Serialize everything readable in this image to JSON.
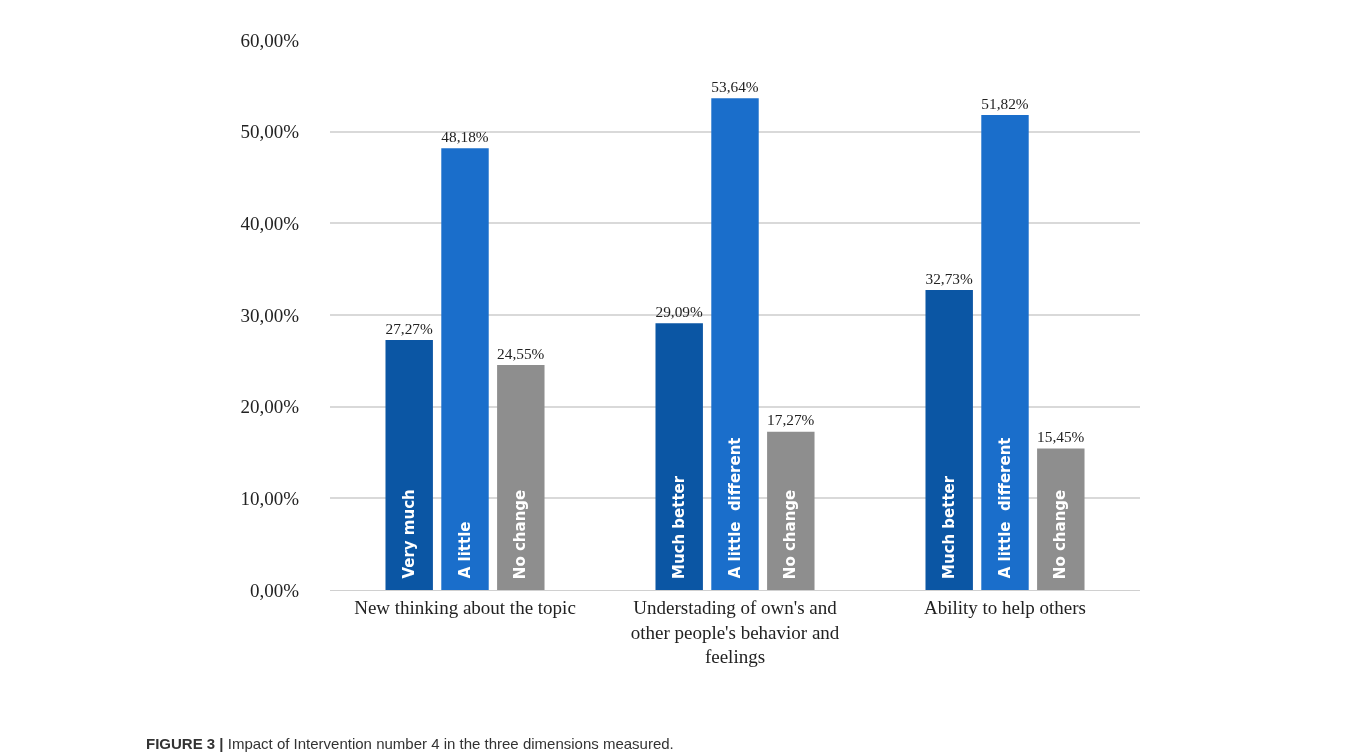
{
  "chart_data": {
    "type": "bar",
    "categories": [
      "New thinking about the topic",
      "Understading of own's and other people's behavior and feelings",
      "Ability to help others"
    ],
    "series": [
      {
        "color": "#0b56a4",
        "values": [
          27.27,
          29.09,
          32.73
        ],
        "value_labels": [
          "27,27%",
          "29,09%",
          "32,73%"
        ]
      },
      {
        "color": "#1a6ecb",
        "values": [
          48.18,
          53.64,
          51.82
        ],
        "value_labels": [
          "48,18%",
          "53,64%",
          "51,82%"
        ]
      },
      {
        "color": "#8e8e8e",
        "values": [
          24.55,
          17.27,
          15.45
        ],
        "value_labels": [
          "24,55%",
          "17,27%",
          "15,45%"
        ]
      }
    ],
    "ylim": [
      0,
      60
    ],
    "yticks": [
      {
        "value": 0,
        "label": "0,00%"
      },
      {
        "value": 10,
        "label": "10,00%"
      },
      {
        "value": 20,
        "label": "20,00%"
      },
      {
        "value": 30,
        "label": "30,00%"
      },
      {
        "value": 40,
        "label": "40,00%"
      },
      {
        "value": 50,
        "label": "50,00%"
      },
      {
        "value": 60,
        "label": "60,00%"
      }
    ],
    "grid": "y",
    "annotations": [
      "Very much",
      "A little",
      "No change",
      "Much better",
      "A little  different",
      "No change",
      "Much better",
      "A little  different",
      "No change",
      "FIGURE 3 | Impact of Intervention number 4 in the three dimensions measured."
    ]
  }
}
